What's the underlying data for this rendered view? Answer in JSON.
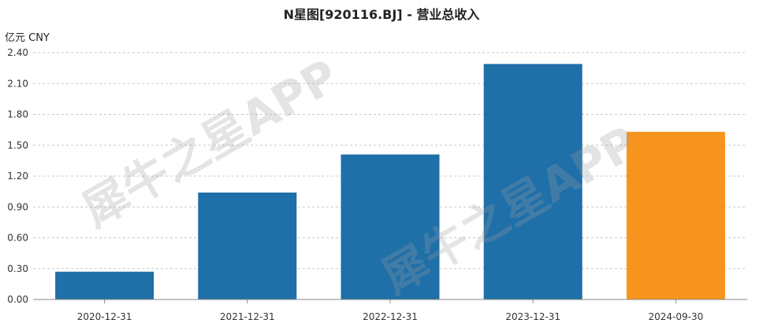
{
  "chart_data": {
    "type": "bar",
    "title": "N星图[920116.BJ] - 营业总收入",
    "unit_label": "亿元  CNY",
    "categories": [
      "2020-12-31",
      "2021-12-31",
      "2022-12-31",
      "2023-12-31",
      "2024-09-30"
    ],
    "values": [
      0.27,
      1.04,
      1.41,
      2.29,
      1.63
    ],
    "ylim": [
      0,
      2.4
    ],
    "yticks": [
      "0.00",
      "0.30",
      "0.60",
      "0.90",
      "1.20",
      "1.50",
      "1.80",
      "2.10",
      "2.40"
    ],
    "grid": true,
    "colors": [
      "#1f6fa8",
      "#1f6fa8",
      "#1f6fa8",
      "#1f6fa8",
      "#f7941d"
    ]
  },
  "watermark": {
    "text": "犀牛之星APP"
  }
}
